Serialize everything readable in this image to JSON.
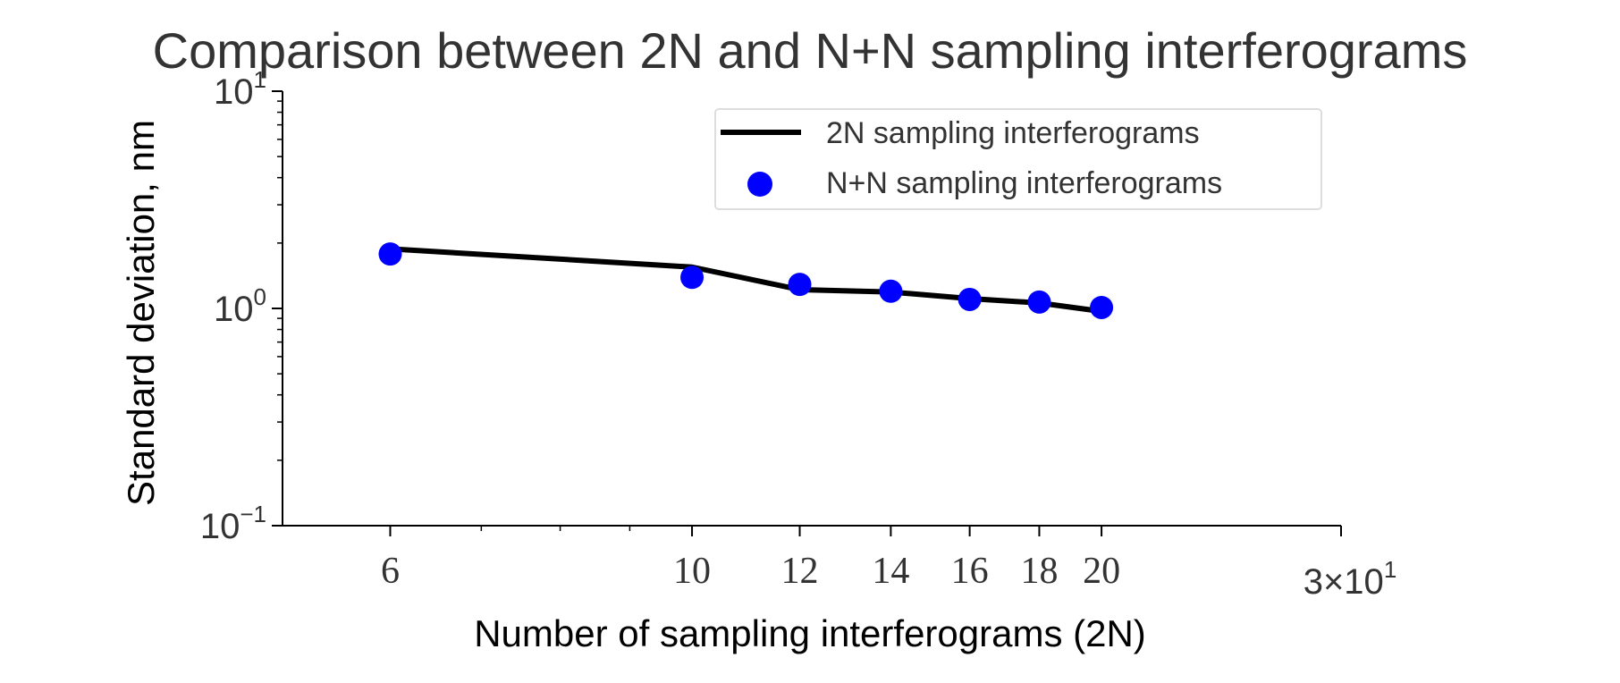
{
  "chart_data": {
    "type": "line",
    "title": "Comparison between 2N and N+N sampling interferograms",
    "xlabel": "Number of sampling interferograms (2N)",
    "ylabel": "Standard deviation, nm",
    "xscale": "log",
    "yscale": "log",
    "xlim": [
      5,
      30
    ],
    "ylim": [
      0.1,
      10
    ],
    "xticks": [
      {
        "value": 6,
        "label": "6"
      },
      {
        "value": 10,
        "label": "10"
      },
      {
        "value": 12,
        "label": "12"
      },
      {
        "value": 14,
        "label": "14"
      },
      {
        "value": 16,
        "label": "16"
      },
      {
        "value": 18,
        "label": "18"
      },
      {
        "value": 20,
        "label": "20"
      }
    ],
    "xtick_sci": {
      "value": 30,
      "base": "3×10",
      "exp": "1"
    },
    "yticks": [
      {
        "value": 10,
        "base": "10",
        "exp": "1"
      },
      {
        "value": 1,
        "base": "10",
        "exp": "0"
      },
      {
        "value": 0.1,
        "base": "10",
        "exp": "−1"
      }
    ],
    "grid": false,
    "legend_position": "top-right",
    "series": [
      {
        "name": "2N sampling interferograms",
        "kind": "line",
        "color": "#000000",
        "x": [
          6,
          10,
          12,
          14,
          16,
          18,
          20
        ],
        "y": [
          1.88,
          1.55,
          1.22,
          1.19,
          1.11,
          1.06,
          0.97
        ]
      },
      {
        "name": "N+N sampling interferograms",
        "kind": "scatter",
        "color": "#0000ff",
        "x": [
          6,
          10,
          12,
          14,
          16,
          18,
          20
        ],
        "y": [
          1.78,
          1.39,
          1.29,
          1.2,
          1.1,
          1.07,
          1.01
        ]
      }
    ]
  }
}
